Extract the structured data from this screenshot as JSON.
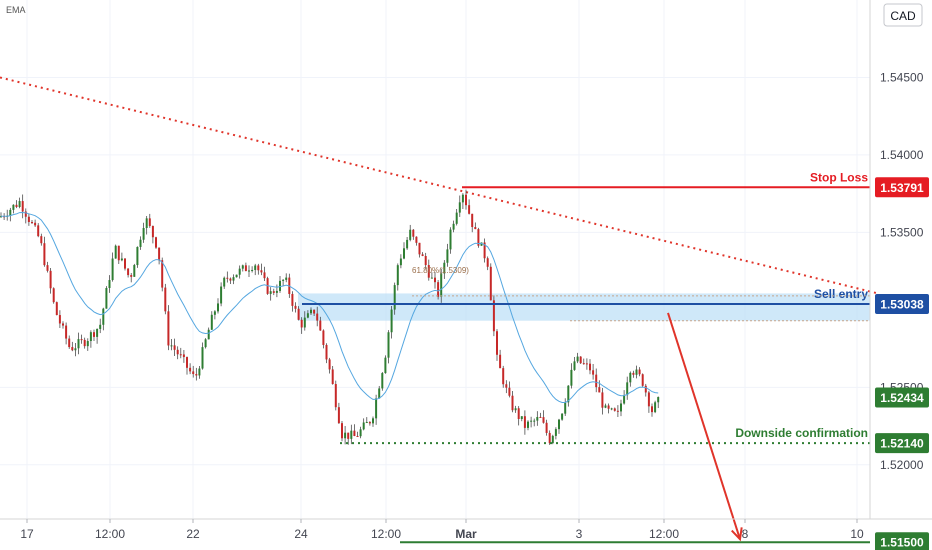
{
  "chart_data": {
    "type": "candlestick",
    "indicator_label": "EMA",
    "currency_label": "CAD",
    "y_axis": {
      "range": [
        1.5165,
        1.55
      ],
      "ticks": [
        "1.54500",
        "1.54000",
        "1.53500",
        "1.52500",
        "1.52000"
      ],
      "tick_values": [
        1.545,
        1.54,
        1.535,
        1.525,
        1.52
      ]
    },
    "x_axis": {
      "range": [
        0,
        930
      ],
      "ticks": [
        {
          "label": "17",
          "x": 27
        },
        {
          "label": "12:00",
          "x": 110
        },
        {
          "label": "22",
          "x": 193
        },
        {
          "label": "24",
          "x": 301
        },
        {
          "label": "12:00",
          "x": 386
        },
        {
          "label": "Mar",
          "x": 466
        },
        {
          "label": "3",
          "x": 579
        },
        {
          "label": "12:00",
          "x": 664
        },
        {
          "label": "8",
          "x": 745
        },
        {
          "label": "10",
          "x": 857
        }
      ]
    },
    "levels": [
      {
        "name": "stop_loss",
        "value": "1.53791",
        "label": "Stop Loss",
        "color": "#e51c23",
        "price": 1.53791,
        "x_start": 462
      },
      {
        "name": "sell_entry",
        "value": "1.53038",
        "label": "Sell entry",
        "color": "#1e4fa3",
        "price": 1.53038,
        "x_start": 302
      },
      {
        "name": "current",
        "value": "1.52434",
        "label": "",
        "color": "#2e7d32",
        "price": 1.52434,
        "x_start": 0
      },
      {
        "name": "downside_confirmation",
        "value": "1.52140",
        "label": "Downside confirmation",
        "color": "#2e7d32",
        "price": 1.5214,
        "x_start": 340
      },
      {
        "name": "target",
        "value": "1.51500",
        "label": "",
        "color": "#2e7d32",
        "price": 1.515,
        "x_start": 400
      }
    ],
    "fib_label": "61.80%(1.5309)",
    "trendline": {
      "from": {
        "x": 0,
        "price": 1.545
      },
      "to": {
        "x": 878,
        "price": 1.53106
      }
    },
    "projection_arrow": {
      "from": {
        "x": 668,
        "price": 1.5298
      },
      "to": {
        "x": 740,
        "price": 1.515
      }
    },
    "resistance_zone": {
      "top": 1.53106,
      "bottom": 1.5293,
      "x_start": 298
    },
    "price_anchors": [
      [
        0,
        1.536
      ],
      [
        20,
        1.537
      ],
      [
        40,
        1.5345
      ],
      [
        55,
        1.53
      ],
      [
        70,
        1.5275
      ],
      [
        85,
        1.528
      ],
      [
        100,
        1.529
      ],
      [
        115,
        1.534
      ],
      [
        130,
        1.532
      ],
      [
        145,
        1.536
      ],
      [
        158,
        1.534
      ],
      [
        168,
        1.528
      ],
      [
        180,
        1.527
      ],
      [
        195,
        1.5255
      ],
      [
        210,
        1.529
      ],
      [
        225,
        1.532
      ],
      [
        240,
        1.5325
      ],
      [
        255,
        1.533
      ],
      [
        270,
        1.531
      ],
      [
        285,
        1.532
      ],
      [
        300,
        1.529
      ],
      [
        315,
        1.53
      ],
      [
        330,
        1.526
      ],
      [
        342,
        1.522
      ],
      [
        355,
        1.5218
      ],
      [
        372,
        1.523
      ],
      [
        385,
        1.527
      ],
      [
        398,
        1.533
      ],
      [
        410,
        1.535
      ],
      [
        425,
        1.533
      ],
      [
        438,
        1.531
      ],
      [
        450,
        1.535
      ],
      [
        462,
        1.5378
      ],
      [
        475,
        1.535
      ],
      [
        488,
        1.533
      ],
      [
        496,
        1.527
      ],
      [
        510,
        1.524
      ],
      [
        525,
        1.5225
      ],
      [
        540,
        1.523
      ],
      [
        550,
        1.5216
      ],
      [
        562,
        1.5235
      ],
      [
        575,
        1.5268
      ],
      [
        590,
        1.5262
      ],
      [
        605,
        1.5235
      ],
      [
        618,
        1.5232
      ],
      [
        630,
        1.5263
      ],
      [
        642,
        1.5255
      ],
      [
        652,
        1.5235
      ],
      [
        660,
        1.5242
      ]
    ]
  }
}
